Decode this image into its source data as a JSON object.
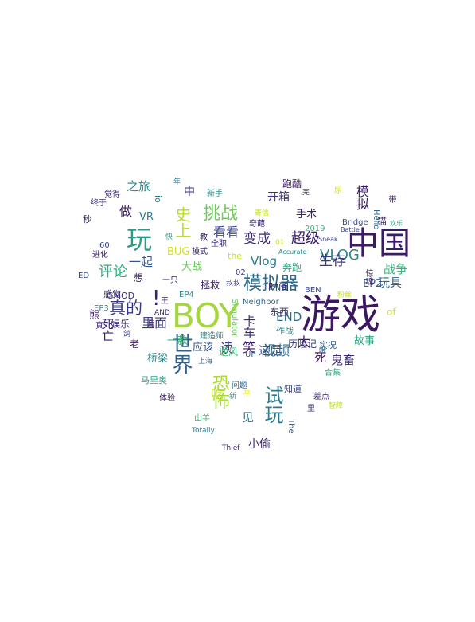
{
  "words": [
    {
      "text": "游戏",
      "color": "#3b1860"
    },
    {
      "text": "中国",
      "color": "#3c1b66"
    },
    {
      "text": "BOY",
      "color": "#a5d53f"
    },
    {
      "text": "模拟器",
      "color": "#2a6c8e"
    },
    {
      "text": "世界",
      "color": "#2e5f8d"
    },
    {
      "text": "玩",
      "color": "#2f9a83"
    },
    {
      "text": "挑战",
      "color": "#6fcb5c"
    },
    {
      "text": "试玩",
      "color": "#2b7b8e"
    },
    {
      "text": "恐怖",
      "color": "#a8db34"
    },
    {
      "text": "VLOG",
      "color": "#2b8a8c"
    },
    {
      "text": "真的",
      "color": "#3a3a80"
    },
    {
      "text": "史上",
      "color": "#b9de2c"
    },
    {
      "text": "超级",
      "color": "#3a1c6c"
    },
    {
      "text": "变成",
      "color": "#3a2a72"
    },
    {
      "text": "生存",
      "color": "#3c387f"
    },
    {
      "text": "视频",
      "color": "#2d6e8e"
    },
    {
      "text": "评论",
      "color": "#2fae7f"
    },
    {
      "text": "看看",
      "color": "#3d4a89"
    },
    {
      "text": "之旅",
      "color": "#2e8c8c"
    },
    {
      "text": "战争",
      "color": "#39b57c"
    },
    {
      "text": "玩具",
      "color": "#2d6190"
    },
    {
      "text": "模拟",
      "color": "#3b1a66"
    },
    {
      "text": "里面",
      "color": "#3c3b80"
    },
    {
      "text": "一起",
      "color": "#34558c"
    },
    {
      "text": "做",
      "color": "#3d1a6a"
    },
    {
      "text": "Vlog",
      "color": "#2c7b8e"
    },
    {
      "text": "END",
      "color": "#2a6e8e"
    },
    {
      "text": "鬼畜",
      "color": "#3c2a72"
    },
    {
      "text": "这是",
      "color": "#35508c"
    },
    {
      "text": "卡车",
      "color": "#3a2c76"
    },
    {
      "text": "读",
      "color": "#3c3c82"
    },
    {
      "text": "中",
      "color": "#3a2878"
    },
    {
      "text": "死亡",
      "color": "#3b2370"
    },
    {
      "text": "太",
      "color": "#3c1658"
    },
    {
      "text": "吃",
      "color": "#c0df25"
    },
    {
      "text": "笑",
      "color": "#3e1c6c"
    },
    {
      "text": "死",
      "color": "#3c1552"
    },
    {
      "text": "见",
      "color": "#2d7a8e"
    },
    {
      "text": "小偷",
      "color": "#3e236a"
    },
    {
      "text": "故事",
      "color": "#2aa685"
    },
    {
      "text": "EP2",
      "color": "#3c5a8c"
    },
    {
      "text": "开箱",
      "color": "#3a3481"
    },
    {
      "text": "手术",
      "color": "#3c2168"
    },
    {
      "text": "桥梁",
      "color": "#2b8b8b"
    },
    {
      "text": "应该",
      "color": "#34518a"
    },
    {
      "text": "时间",
      "color": "#3b2b72"
    },
    {
      "text": "东西",
      "color": "#3a2a74"
    },
    {
      "text": "大战",
      "color": "#6cc863"
    },
    {
      "text": "娱乐",
      "color": "#3a2e78"
    },
    {
      "text": "历险记",
      "color": "#3b3a7e"
    },
    {
      "text": "作战",
      "color": "#2e8e8c"
    },
    {
      "text": "逆风",
      "color": "#3cb87a"
    },
    {
      "text": "一款",
      "color": "#3cb278"
    },
    {
      "text": "跑酷",
      "color": "#3a1b60"
    },
    {
      "text": "拯救",
      "color": "#3c2266"
    },
    {
      "text": "马里奥",
      "color": "#2a9a86"
    },
    {
      "text": "奔跑",
      "color": "#2aa882"
    },
    {
      "text": "VR",
      "color": "#2c7a8e"
    },
    {
      "text": "BUG",
      "color": "#d7e21d"
    },
    {
      "text": "GMOD",
      "color": "#3a2e78"
    },
    {
      "text": "!",
      "color": "#3c2066"
    },
    {
      "text": "io",
      "color": "#2b7d8c"
    },
    {
      "text": "想",
      "color": "#3c2566"
    },
    {
      "text": "老",
      "color": "#3c1c62"
    },
    {
      "text": "熊",
      "color": "#3c1d62"
    },
    {
      "text": "感觉",
      "color": "#3b2a70"
    },
    {
      "text": "秒",
      "color": "#3b2c74"
    },
    {
      "text": "实况",
      "color": "#2f5f8c"
    },
    {
      "text": "知道",
      "color": "#3a4583"
    },
    {
      "text": "the",
      "color": "#c7df27"
    },
    {
      "text": "of",
      "color": "#d5e21f"
    },
    {
      "text": "Neighbor",
      "color": "#2e6a8e"
    },
    {
      "text": "Bridge",
      "color": "#3b4a86"
    },
    {
      "text": "猫",
      "color": "#3c2570"
    },
    {
      "text": "EP3",
      "color": "#2e8a8c"
    },
    {
      "text": "EP4",
      "color": "#2f8a8a"
    },
    {
      "text": "BEN",
      "color": "#3d4a8a"
    },
    {
      "text": "模式",
      "color": "#3a2d72"
    },
    {
      "text": "教",
      "color": "#3c2168"
    },
    {
      "text": "全职",
      "color": "#3a2c76"
    },
    {
      "text": "2019",
      "color": "#41b27a"
    },
    {
      "text": "新手",
      "color": "#2f8e8b"
    },
    {
      "text": "觉得",
      "color": "#3b2a78"
    },
    {
      "text": "终于",
      "color": "#3a2c76"
    },
    {
      "text": "60",
      "color": "#3a4585"
    },
    {
      "text": "进化",
      "color": "#3c2768"
    },
    {
      "text": "ED",
      "color": "#3a4585"
    },
    {
      "text": "真",
      "color": "#3b2270"
    },
    {
      "text": "体验",
      "color": "#3b1a5e"
    },
    {
      "text": "山羊",
      "color": "#3cb37a"
    },
    {
      "text": "Totally",
      "color": "#2d7c8e"
    },
    {
      "text": "Thief",
      "color": "#3c1e68"
    },
    {
      "text": "The",
      "color": "#2e5f8d"
    },
    {
      "text": "里",
      "color": "#3a2e78"
    },
    {
      "text": "差点",
      "color": "#3a1c68"
    },
    {
      "text": "合集",
      "color": "#2aa685"
    },
    {
      "text": "问题",
      "color": "#2f6a8e"
    },
    {
      "text": "上海",
      "color": "#2e6a8e"
    },
    {
      "text": "建造师",
      "color": "#2e8a8c"
    },
    {
      "text": "Simulator",
      "color": "#6ac866"
    },
    {
      "text": "UP",
      "color": "#2e5f8d"
    },
    {
      "text": "02",
      "color": "#3b3c80"
    },
    {
      "text": "叔叔",
      "color": "#3b3c80"
    },
    {
      "text": "一只",
      "color": "#3b1b60"
    },
    {
      "text": "AND",
      "color": "#3b2a72"
    },
    {
      "text": "王",
      "color": "#3c2466"
    },
    {
      "text": "快",
      "color": "#2ea483"
    },
    {
      "text": "年",
      "color": "#2a7f8d"
    },
    {
      "text": "完",
      "color": "#3c1c62"
    },
    {
      "text": "尿",
      "color": "#d6e21e"
    },
    {
      "text": "奇葩",
      "color": "#3a2c76"
    },
    {
      "text": "01",
      "color": "#c8df27"
    },
    {
      "text": "Accurate",
      "color": "#2e8e8c"
    },
    {
      "text": "Sneak",
      "color": "#3a4585"
    },
    {
      "text": "Battle",
      "color": "#3a4585"
    },
    {
      "text": "Hello",
      "color": "#2e6a8e"
    },
    {
      "text": "带",
      "color": "#3c2066"
    },
    {
      "text": "欢乐",
      "color": "#2ea483"
    },
    {
      "text": "粉丝",
      "color": "#c2df23"
    },
    {
      "text": "惊魂",
      "color": "#3a1b64"
    },
    {
      "text": "智障",
      "color": "#c6e026"
    },
    {
      "text": "新",
      "color": "#2e8e8c"
    },
    {
      "text": "平",
      "color": "#d5e21f"
    },
    {
      "text": "寄信",
      "color": "#c6e026"
    },
    {
      "text": "属",
      "color": "#3c2066"
    },
    {
      "text": "鸽",
      "color": "#3a4585"
    },
    {
      "text": "哦",
      "color": "#2e6a8e"
    }
  ]
}
